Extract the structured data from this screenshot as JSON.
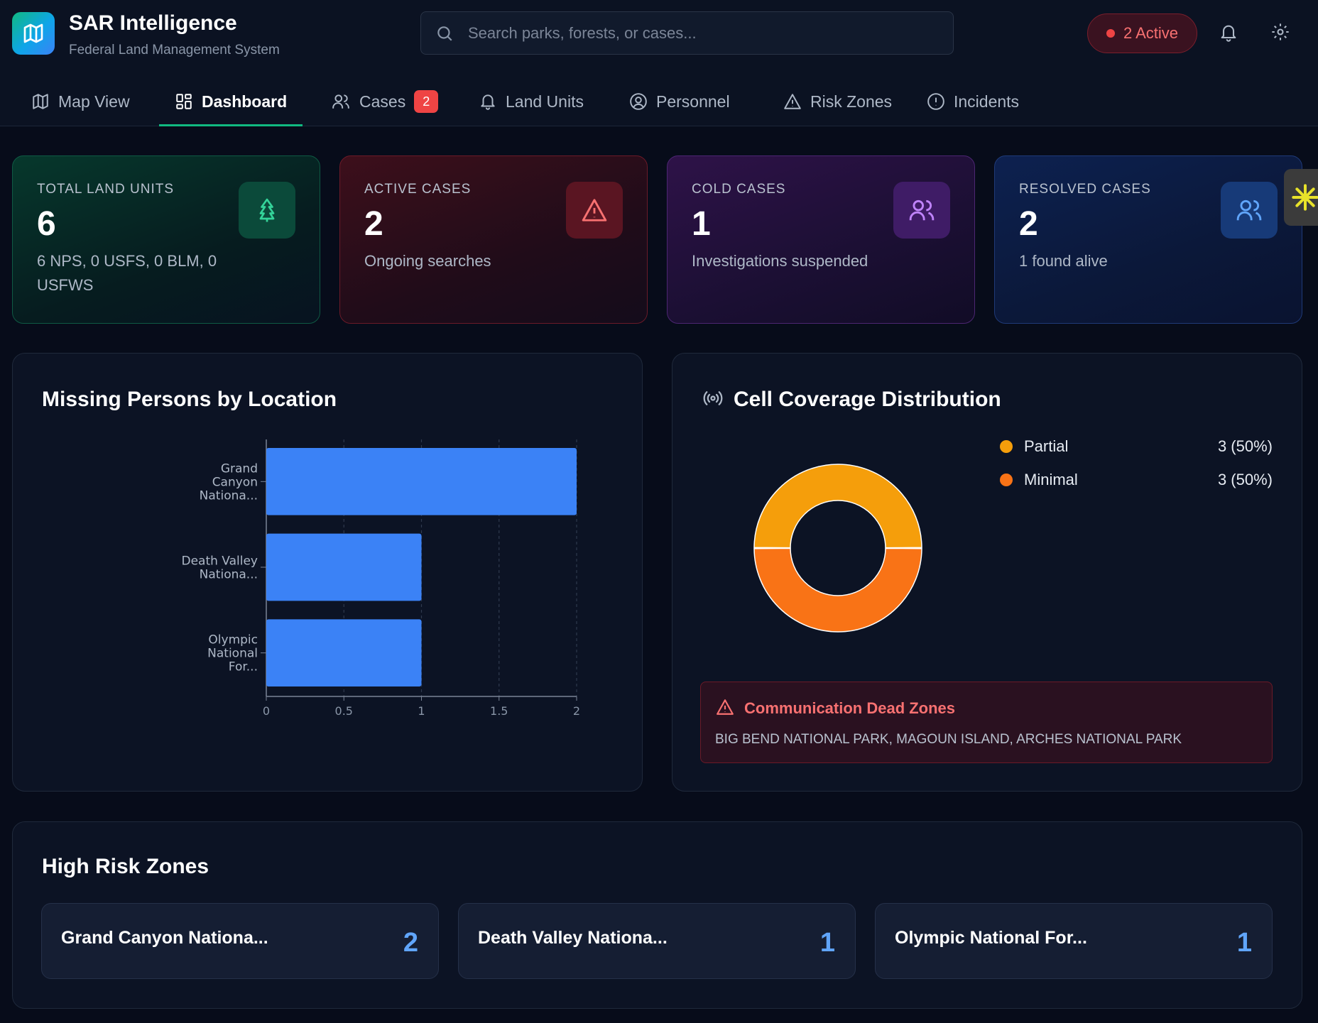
{
  "app": {
    "title": "SAR Intelligence",
    "subtitle": "Federal Land Management System"
  },
  "search": {
    "placeholder": "Search parks, forests, or cases..."
  },
  "active_pill": {
    "label": "2 Active"
  },
  "tabs": [
    {
      "label": "Map View",
      "icon": "map-icon"
    },
    {
      "label": "Dashboard",
      "icon": "dashboard-icon",
      "active": true
    },
    {
      "label": "Cases",
      "icon": "users-icon",
      "badge": "2"
    },
    {
      "label": "Land Units",
      "icon": "bell-icon"
    },
    {
      "label": "Personnel",
      "icon": "user-circle-icon"
    },
    {
      "label": "Risk Zones",
      "icon": "warning-icon"
    },
    {
      "label": "Incidents",
      "icon": "alert-circle-icon"
    }
  ],
  "stats": [
    {
      "label": "TOTAL LAND UNITS",
      "value": "6",
      "sub": "6 NPS, 0 USFS, 0 BLM, 0 USFWS",
      "icon": "tree-icon",
      "color": "#34d399"
    },
    {
      "label": "ACTIVE CASES",
      "value": "2",
      "sub": "Ongoing searches",
      "icon": "warning-icon",
      "color": "#f87171"
    },
    {
      "label": "COLD CASES",
      "value": "1",
      "sub": "Investigations suspended",
      "icon": "users-icon",
      "color": "#c084fc"
    },
    {
      "label": "RESOLVED CASES",
      "value": "2",
      "sub": "1 found alive",
      "icon": "users-icon",
      "color": "#60a5fa"
    }
  ],
  "missing_panel": {
    "title": "Missing Persons by Location"
  },
  "coverage_panel": {
    "title": "Cell Coverage Distribution",
    "legend": [
      {
        "label": "Partial",
        "value": "3 (50%)",
        "color": "#f59e0b"
      },
      {
        "label": "Minimal",
        "value": "3 (50%)",
        "color": "#f97316"
      }
    ]
  },
  "dead_zones": {
    "title": "Communication Dead Zones",
    "list": "BIG BEND NATIONAL PARK, MAGOUN ISLAND, ARCHES NATIONAL PARK"
  },
  "high_risk": {
    "title": "High Risk Zones",
    "zones": [
      {
        "name": "Grand Canyon Nationa...",
        "count": "2"
      },
      {
        "name": "Death Valley Nationa...",
        "count": "1"
      },
      {
        "name": "Olympic National For...",
        "count": "1"
      }
    ]
  },
  "chart_data": [
    {
      "type": "bar",
      "orientation": "horizontal",
      "categories": [
        [
          "Grand",
          "Canyon",
          "Nationa..."
        ],
        [
          "Death Valley",
          "Nationa..."
        ],
        [
          "Olympic",
          "National",
          "For..."
        ]
      ],
      "values": [
        2,
        1,
        1
      ],
      "xlim": [
        0,
        2
      ],
      "xticks": [
        "0",
        "0.5",
        "1",
        "1.5",
        "2"
      ],
      "grid": true,
      "color": "#3b82f6"
    },
    {
      "type": "pie",
      "donut": true,
      "labels": [
        "Partial",
        "Minimal"
      ],
      "values": [
        3,
        3
      ],
      "colors": [
        "#f59e0b",
        "#f97316"
      ]
    }
  ]
}
